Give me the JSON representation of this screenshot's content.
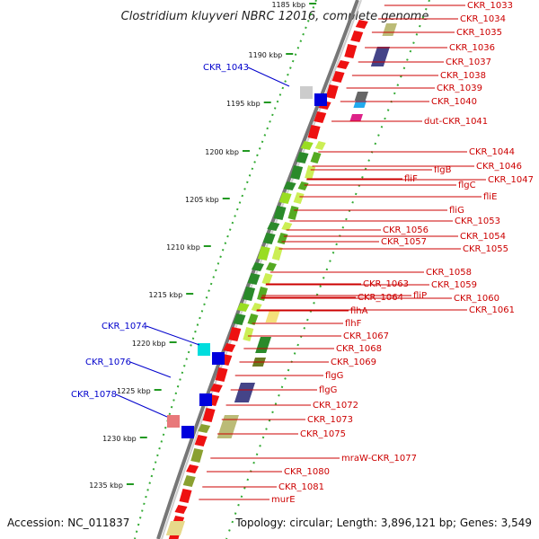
{
  "title": "Clostridium kluyveri NBRC 12016, complete genome",
  "footer": {
    "accession": "Accession: NC_011837",
    "summary": "Topology: circular; Length: 3,896,121 bp; Genes: 3,549"
  },
  "colors": {
    "left_label": "#0000cc",
    "right_label": "#cc0000",
    "tick": "#229922",
    "backbone": "#888888"
  },
  "ticks": [
    "1185 kbp",
    "1190 kbp",
    "1195 kbp",
    "1200 kbp",
    "1205 kbp",
    "1210 kbp",
    "1215 kbp",
    "1220 kbp",
    "1225 kbp",
    "1230 kbp",
    "1235 kbp"
  ],
  "left_labels": [
    "CKR_1043",
    "CKR_1074",
    "CKR_1076",
    "CKR_1078"
  ],
  "right_labels": [
    "CKR_1033",
    "CKR_1034",
    "CKR_1035",
    "CKR_1036",
    "CKR_1037",
    "CKR_1038",
    "CKR_1039",
    "CKR_1040",
    "dut-CKR_1041",
    "CKR_1044",
    "CKR_1046",
    "flgB",
    "CKR_1047",
    "fliF",
    "flgC",
    "fliE",
    "fliG",
    "CKR_1053",
    "CKR_1056",
    "CKR_1054",
    "CKR_1057",
    "CKR_1055",
    "CKR_1058",
    "CKR_1063",
    "CKR_1059",
    "fliP",
    "CKR_1064",
    "CKR_1060",
    "CKR_1061",
    "flhA",
    "flhF",
    "CKR_1067",
    "CKR_1068",
    "CKR_1069",
    "flgG",
    "flgG",
    "CKR_1072",
    "CKR_1073",
    "CKR_1075",
    "mraW-CKR_1077",
    "CKR_1080",
    "CKR_1081",
    "murE"
  ]
}
